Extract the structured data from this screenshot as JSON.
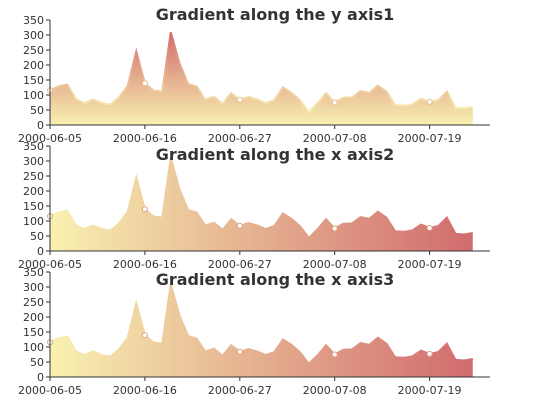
{
  "chart_data": [
    {
      "type": "area",
      "title": "Gradient along the y axis1",
      "gradient": "vertical",
      "x_start": "2000-06-05",
      "x_end": "2000-07-26",
      "x_ticks": [
        "2000-06-05",
        "2000-06-16",
        "2000-06-27",
        "2000-07-08",
        "2000-07-19"
      ],
      "ylim": [
        0,
        350
      ],
      "y_ticks": [
        0,
        50,
        100,
        150,
        200,
        250,
        300,
        350
      ],
      "grid": false,
      "color_light": "#F8F1B0",
      "color_dark": "#D16B6E",
      "marker_dates": [
        "2000-06-05",
        "2000-06-16",
        "2000-06-27",
        "2000-07-08",
        "2000-07-19"
      ]
    },
    {
      "type": "area",
      "title": "Gradient along the x axis2",
      "gradient": "horizontal",
      "x_start": "2000-06-05",
      "x_end": "2000-07-26",
      "x_ticks": [
        "2000-06-05",
        "2000-06-16",
        "2000-06-27",
        "2000-07-08",
        "2000-07-19"
      ],
      "ylim": [
        0,
        350
      ],
      "y_ticks": [
        0,
        50,
        100,
        150,
        200,
        250,
        300,
        350
      ],
      "grid": false,
      "color_light": "#F8F1B0",
      "color_dark": "#D16B6E",
      "marker_dates": [
        "2000-06-05",
        "2000-06-16",
        "2000-06-27",
        "2000-07-08",
        "2000-07-19"
      ]
    },
    {
      "type": "area",
      "title": "Gradient along the x axis3",
      "gradient": "horizontal",
      "x_start": "2000-06-05",
      "x_end": "2000-07-26",
      "x_ticks": [
        "2000-06-05",
        "2000-06-16",
        "2000-06-27",
        "2000-07-08",
        "2000-07-19"
      ],
      "ylim": [
        0,
        350
      ],
      "y_ticks": [
        0,
        50,
        100,
        150,
        200,
        250,
        300,
        350
      ],
      "grid": false,
      "color_light": "#F8F1B0",
      "color_dark": "#D16B6E",
      "marker_dates": [
        "2000-06-05",
        "2000-06-16",
        "2000-06-27",
        "2000-07-08",
        "2000-07-19"
      ]
    }
  ],
  "series_values": [
    116,
    129,
    135,
    86,
    73,
    85,
    73,
    68,
    92,
    130,
    245,
    139,
    115,
    111,
    309,
    206,
    137,
    128,
    85,
    94,
    71,
    106,
    84,
    93,
    85,
    73,
    83,
    125,
    107,
    82,
    44,
    72,
    106,
    75,
    91,
    92,
    113,
    107,
    131,
    111,
    66,
    64,
    69,
    88,
    77,
    83,
    111,
    57,
    55,
    60
  ]
}
